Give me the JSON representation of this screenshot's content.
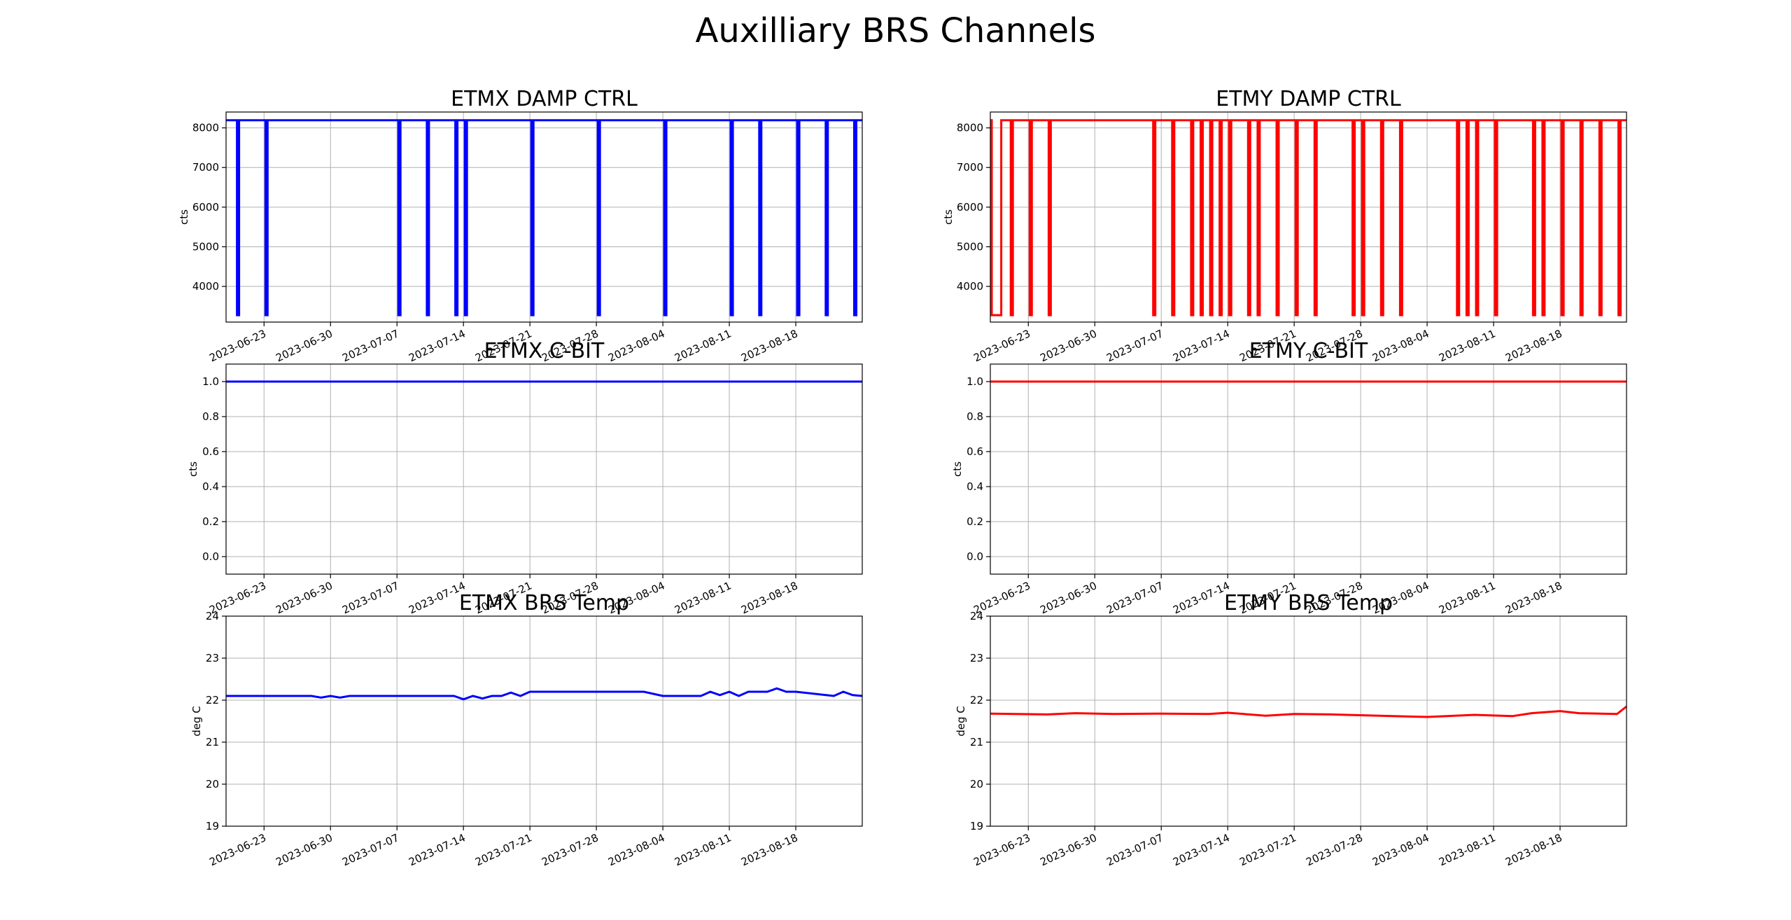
{
  "figure": {
    "suptitle": "Auxilliary BRS Channels"
  },
  "chart_data": [
    {
      "id": "etmx-damp",
      "type": "line",
      "title": "ETMX DAMP CTRL",
      "ylabel": "cts",
      "xlabel": "",
      "color": "#0000ff",
      "grid": true,
      "x_range": [
        "2023-06-19",
        "2023-08-25"
      ],
      "ylim": [
        3100,
        8400
      ],
      "yticks": [
        4000,
        5000,
        6000,
        7000,
        8000
      ],
      "xticks": [
        "2023-06-23",
        "2023-06-30",
        "2023-07-07",
        "2023-07-14",
        "2023-07-21",
        "2023-07-28",
        "2023-08-04",
        "2023-08-11",
        "2023-08-18"
      ],
      "series": [
        {
          "base": 8192,
          "low": 3275,
          "dips": [
            [
              "2023-06-20",
              "2023-06-20"
            ],
            [
              "2023-06-23",
              "2023-06-23"
            ],
            [
              "2023-07-07",
              "2023-07-07"
            ],
            [
              "2023-07-10",
              "2023-07-10"
            ],
            [
              "2023-07-13",
              "2023-07-13"
            ],
            [
              "2023-07-14",
              "2023-07-14"
            ],
            [
              "2023-07-21",
              "2023-07-21"
            ],
            [
              "2023-07-28",
              "2023-07-28"
            ],
            [
              "2023-08-04",
              "2023-08-04"
            ],
            [
              "2023-08-11",
              "2023-08-11"
            ],
            [
              "2023-08-14",
              "2023-08-14"
            ],
            [
              "2023-08-18",
              "2023-08-18"
            ],
            [
              "2023-08-21",
              "2023-08-21"
            ],
            [
              "2023-08-24",
              "2023-08-24"
            ]
          ]
        }
      ]
    },
    {
      "id": "etmy-damp",
      "type": "line",
      "title": "ETMY DAMP CTRL",
      "ylabel": "cts",
      "xlabel": "",
      "color": "#ff0000",
      "grid": true,
      "x_range": [
        "2023-06-19",
        "2023-08-25"
      ],
      "ylim": [
        3100,
        8400
      ],
      "yticks": [
        4000,
        5000,
        6000,
        7000,
        8000
      ],
      "xticks": [
        "2023-06-23",
        "2023-06-30",
        "2023-07-07",
        "2023-07-14",
        "2023-07-21",
        "2023-07-28",
        "2023-08-04",
        "2023-08-11",
        "2023-08-18"
      ],
      "series": [
        {
          "base": 8192,
          "low": 3275,
          "dips": [
            [
              "2023-06-19",
              "2023-06-20"
            ],
            [
              "2023-06-21",
              "2023-06-21"
            ],
            [
              "2023-06-23",
              "2023-06-23"
            ],
            [
              "2023-06-25",
              "2023-06-25"
            ],
            [
              "2023-07-06",
              "2023-07-06"
            ],
            [
              "2023-07-08",
              "2023-07-08"
            ],
            [
              "2023-07-10",
              "2023-07-10"
            ],
            [
              "2023-07-11",
              "2023-07-11"
            ],
            [
              "2023-07-12",
              "2023-07-12"
            ],
            [
              "2023-07-13",
              "2023-07-13"
            ],
            [
              "2023-07-14",
              "2023-07-14"
            ],
            [
              "2023-07-16",
              "2023-07-16"
            ],
            [
              "2023-07-17",
              "2023-07-17"
            ],
            [
              "2023-07-19",
              "2023-07-19"
            ],
            [
              "2023-07-21",
              "2023-07-21"
            ],
            [
              "2023-07-23",
              "2023-07-23"
            ],
            [
              "2023-07-27",
              "2023-07-27"
            ],
            [
              "2023-07-28",
              "2023-07-28"
            ],
            [
              "2023-07-30",
              "2023-07-30"
            ],
            [
              "2023-08-01",
              "2023-08-01"
            ],
            [
              "2023-08-07",
              "2023-08-07"
            ],
            [
              "2023-08-08",
              "2023-08-08"
            ],
            [
              "2023-08-09",
              "2023-08-09"
            ],
            [
              "2023-08-11",
              "2023-08-11"
            ],
            [
              "2023-08-15",
              "2023-08-15"
            ],
            [
              "2023-08-16",
              "2023-08-16"
            ],
            [
              "2023-08-18",
              "2023-08-18"
            ],
            [
              "2023-08-20",
              "2023-08-20"
            ],
            [
              "2023-08-22",
              "2023-08-22"
            ],
            [
              "2023-08-24",
              "2023-08-24"
            ]
          ]
        }
      ]
    },
    {
      "id": "etmx-cbit",
      "type": "line",
      "title": "ETMX C-BIT",
      "ylabel": "cts",
      "xlabel": "",
      "color": "#0000ff",
      "grid": true,
      "x_range": [
        "2023-06-19",
        "2023-08-25"
      ],
      "ylim": [
        -0.1,
        1.1
      ],
      "yticks": [
        0.0,
        0.2,
        0.4,
        0.6,
        0.8,
        1.0
      ],
      "xticks": [
        "2023-06-23",
        "2023-06-30",
        "2023-07-07",
        "2023-07-14",
        "2023-07-21",
        "2023-07-28",
        "2023-08-04",
        "2023-08-11",
        "2023-08-18"
      ],
      "series": [
        {
          "x": [
            "2023-06-19",
            "2023-08-25"
          ],
          "y": [
            1.0,
            1.0
          ]
        }
      ]
    },
    {
      "id": "etmy-cbit",
      "type": "line",
      "title": "ETMY C-BIT",
      "ylabel": "cts",
      "xlabel": "",
      "color": "#ff0000",
      "grid": true,
      "x_range": [
        "2023-06-19",
        "2023-08-25"
      ],
      "ylim": [
        -0.1,
        1.1
      ],
      "yticks": [
        0.0,
        0.2,
        0.4,
        0.6,
        0.8,
        1.0
      ],
      "xticks": [
        "2023-06-23",
        "2023-06-30",
        "2023-07-07",
        "2023-07-14",
        "2023-07-21",
        "2023-07-28",
        "2023-08-04",
        "2023-08-11",
        "2023-08-18"
      ],
      "series": [
        {
          "x": [
            "2023-06-19",
            "2023-08-25"
          ],
          "y": [
            1.0,
            1.0
          ]
        }
      ]
    },
    {
      "id": "etmx-temp",
      "type": "line",
      "title": "ETMX BRS Temp",
      "ylabel": "deg C",
      "xlabel": "",
      "color": "#0000ff",
      "grid": true,
      "x_range": [
        "2023-06-19",
        "2023-08-25"
      ],
      "ylim": [
        19,
        24
      ],
      "yticks": [
        19,
        20,
        21,
        22,
        23,
        24
      ],
      "xticks": [
        "2023-06-23",
        "2023-06-30",
        "2023-07-07",
        "2023-07-14",
        "2023-07-21",
        "2023-07-28",
        "2023-08-04",
        "2023-08-11",
        "2023-08-18"
      ],
      "series": [
        {
          "x": [
            "2023-06-19",
            "2023-06-28",
            "2023-06-29",
            "2023-06-30",
            "2023-07-01",
            "2023-07-02",
            "2023-07-13",
            "2023-07-14",
            "2023-07-15",
            "2023-07-16",
            "2023-07-17",
            "2023-07-18",
            "2023-07-19",
            "2023-07-20",
            "2023-07-21",
            "2023-07-22",
            "2023-07-25",
            "2023-07-27",
            "2023-07-28",
            "2023-07-30",
            "2023-08-01",
            "2023-08-02",
            "2023-08-04",
            "2023-08-05",
            "2023-08-08",
            "2023-08-09",
            "2023-08-10",
            "2023-08-11",
            "2023-08-12",
            "2023-08-13",
            "2023-08-15",
            "2023-08-16",
            "2023-08-17",
            "2023-08-18",
            "2023-08-22",
            "2023-08-23",
            "2023-08-24",
            "2023-08-25"
          ],
          "y": [
            22.1,
            22.1,
            22.06,
            22.1,
            22.06,
            22.1,
            22.1,
            22.02,
            22.1,
            22.04,
            22.1,
            22.1,
            22.18,
            22.1,
            22.2,
            22.2,
            22.2,
            22.2,
            22.2,
            22.2,
            22.2,
            22.2,
            22.1,
            22.1,
            22.1,
            22.2,
            22.12,
            22.2,
            22.1,
            22.2,
            22.2,
            22.28,
            22.2,
            22.2,
            22.1,
            22.2,
            22.12,
            22.1
          ]
        }
      ]
    },
    {
      "id": "etmy-temp",
      "type": "line",
      "title": "ETMY BRS Temp",
      "ylabel": "deg C",
      "xlabel": "",
      "color": "#ff0000",
      "grid": true,
      "x_range": [
        "2023-06-19",
        "2023-08-25"
      ],
      "ylim": [
        19,
        24
      ],
      "yticks": [
        19,
        20,
        21,
        22,
        23,
        24
      ],
      "xticks": [
        "2023-06-23",
        "2023-06-30",
        "2023-07-07",
        "2023-07-14",
        "2023-07-21",
        "2023-07-28",
        "2023-08-04",
        "2023-08-11",
        "2023-08-18"
      ],
      "series": [
        {
          "x": [
            "2023-06-19",
            "2023-06-25",
            "2023-06-28",
            "2023-07-02",
            "2023-07-07",
            "2023-07-12",
            "2023-07-14",
            "2023-07-18",
            "2023-07-21",
            "2023-07-25",
            "2023-07-30",
            "2023-08-04",
            "2023-08-09",
            "2023-08-13",
            "2023-08-15",
            "2023-08-18",
            "2023-08-20",
            "2023-08-24",
            "2023-08-25"
          ],
          "y": [
            21.68,
            21.66,
            21.69,
            21.67,
            21.68,
            21.67,
            21.7,
            21.63,
            21.67,
            21.66,
            21.63,
            21.6,
            21.65,
            21.62,
            21.69,
            21.74,
            21.69,
            21.67,
            21.85
          ]
        }
      ]
    }
  ]
}
